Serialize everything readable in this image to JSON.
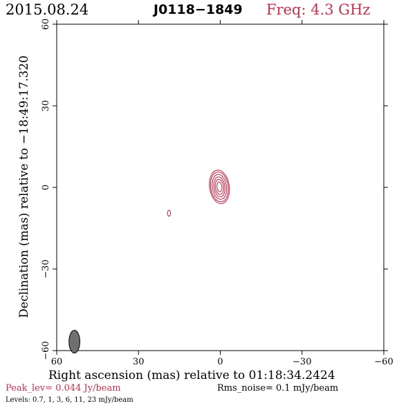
{
  "header": {
    "date": "2015.08.24",
    "source": "J0118−1849",
    "frequency": "Freq: 4.3 GHz"
  },
  "footer": {
    "peak": "Peak_lev=  0.044 Jy/beam",
    "rms": "Rms_noise=  0.1 mJy/beam",
    "levels": "Levels: 0.7,    1,    3,    6,   11,   23 mJy/beam"
  },
  "colors": {
    "contour": "#c0304f",
    "beam": "#707070",
    "peak_text": "#c0304f"
  },
  "chart_data": {
    "type": "contour",
    "xlabel": "Right ascension (mas) relative to 01:18:34.2424",
    "ylabel": "Declination (mas) relative to −18:49:17.320",
    "xlim": [
      60,
      -60
    ],
    "ylim": [
      -60,
      60
    ],
    "xticks": [
      60,
      30,
      0,
      -30,
      -60
    ],
    "yticks": [
      -60,
      -30,
      0,
      30,
      60
    ],
    "xtick_labels": [
      "60",
      "30",
      "0",
      "−30",
      "−60"
    ],
    "ytick_labels": [
      "−60",
      "−30",
      "0",
      "30",
      "60"
    ],
    "contour_levels_mJy": [
      0.7,
      1,
      3,
      6,
      11,
      23
    ],
    "components": [
      {
        "name": "core",
        "x": 0.3,
        "y": 0.2,
        "contours": [
          {
            "level": 0.7,
            "rx": 3.6,
            "ry": 6.2
          },
          {
            "level": 1,
            "rx": 3.2,
            "ry": 5.5
          },
          {
            "level": 3,
            "rx": 2.6,
            "ry": 4.6
          },
          {
            "level": 6,
            "rx": 2.0,
            "ry": 3.7
          },
          {
            "level": 11,
            "rx": 1.5,
            "ry": 2.8
          },
          {
            "level": 23,
            "rx": 0.9,
            "ry": 1.8
          }
        ],
        "tilt_deg": -8
      },
      {
        "name": "secondary",
        "x": 18.8,
        "y": -9.5,
        "contours": [
          {
            "level": 0.7,
            "rx": 0.55,
            "ry": 1.1
          }
        ],
        "tilt_deg": 0
      }
    ],
    "beam": {
      "x": 53.5,
      "y": -56.7,
      "major_mas": 4.2,
      "minor_mas": 2.0,
      "pa_deg": 0
    }
  }
}
